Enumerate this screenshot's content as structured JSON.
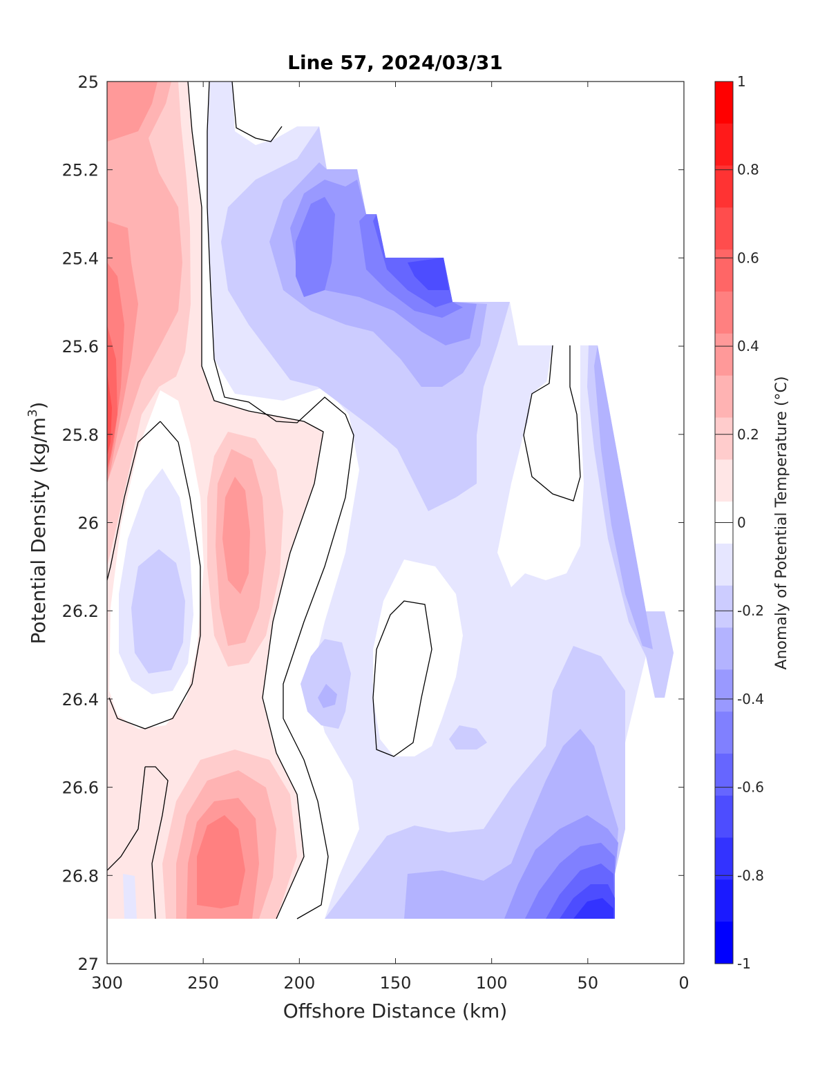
{
  "chart_data": {
    "type": "contourf",
    "title": "Line 57, 2024/03/31",
    "xlabel": "Offshore Distance (km)",
    "ylabel_main": "Potential Density (kg/m",
    "ylabel_sup": "3",
    "ylabel_close": ")",
    "colorbar_label": "Anomaly of Potential Temperature (°C)",
    "xlim": [
      300,
      0
    ],
    "ylim": [
      25,
      27
    ],
    "x_reversed": true,
    "y_reversed": true,
    "xticks": [
      300,
      250,
      200,
      150,
      100,
      50,
      0
    ],
    "yticks": [
      "25",
      "25.2",
      "25.4",
      "25.6",
      "25.8",
      "26",
      "26.2",
      "26.4",
      "26.6",
      "26.8",
      "27"
    ],
    "colorbar": {
      "range": [
        -1,
        1
      ],
      "step": 0.1,
      "ticks": [
        "1",
        "0.8",
        "0.6",
        "0.4",
        "0.2",
        "0",
        "-0.2",
        "-0.4",
        "-0.6",
        "-0.8",
        "-1"
      ],
      "colors": [
        "#ff0000",
        "#ff1a1a",
        "#ff3333",
        "#ff4d4d",
        "#ff6666",
        "#ff8080",
        "#ff9999",
        "#ffb3b3",
        "#ffcccc",
        "#ffe6e6",
        "#ffffff",
        "#e6e6ff",
        "#ccccff",
        "#b3b3ff",
        "#9999ff",
        "#8080ff",
        "#6666ff",
        "#4d4dff",
        "#3333ff",
        "#1a1aff",
        "#0000ff"
      ]
    },
    "zero_contour": true
  }
}
